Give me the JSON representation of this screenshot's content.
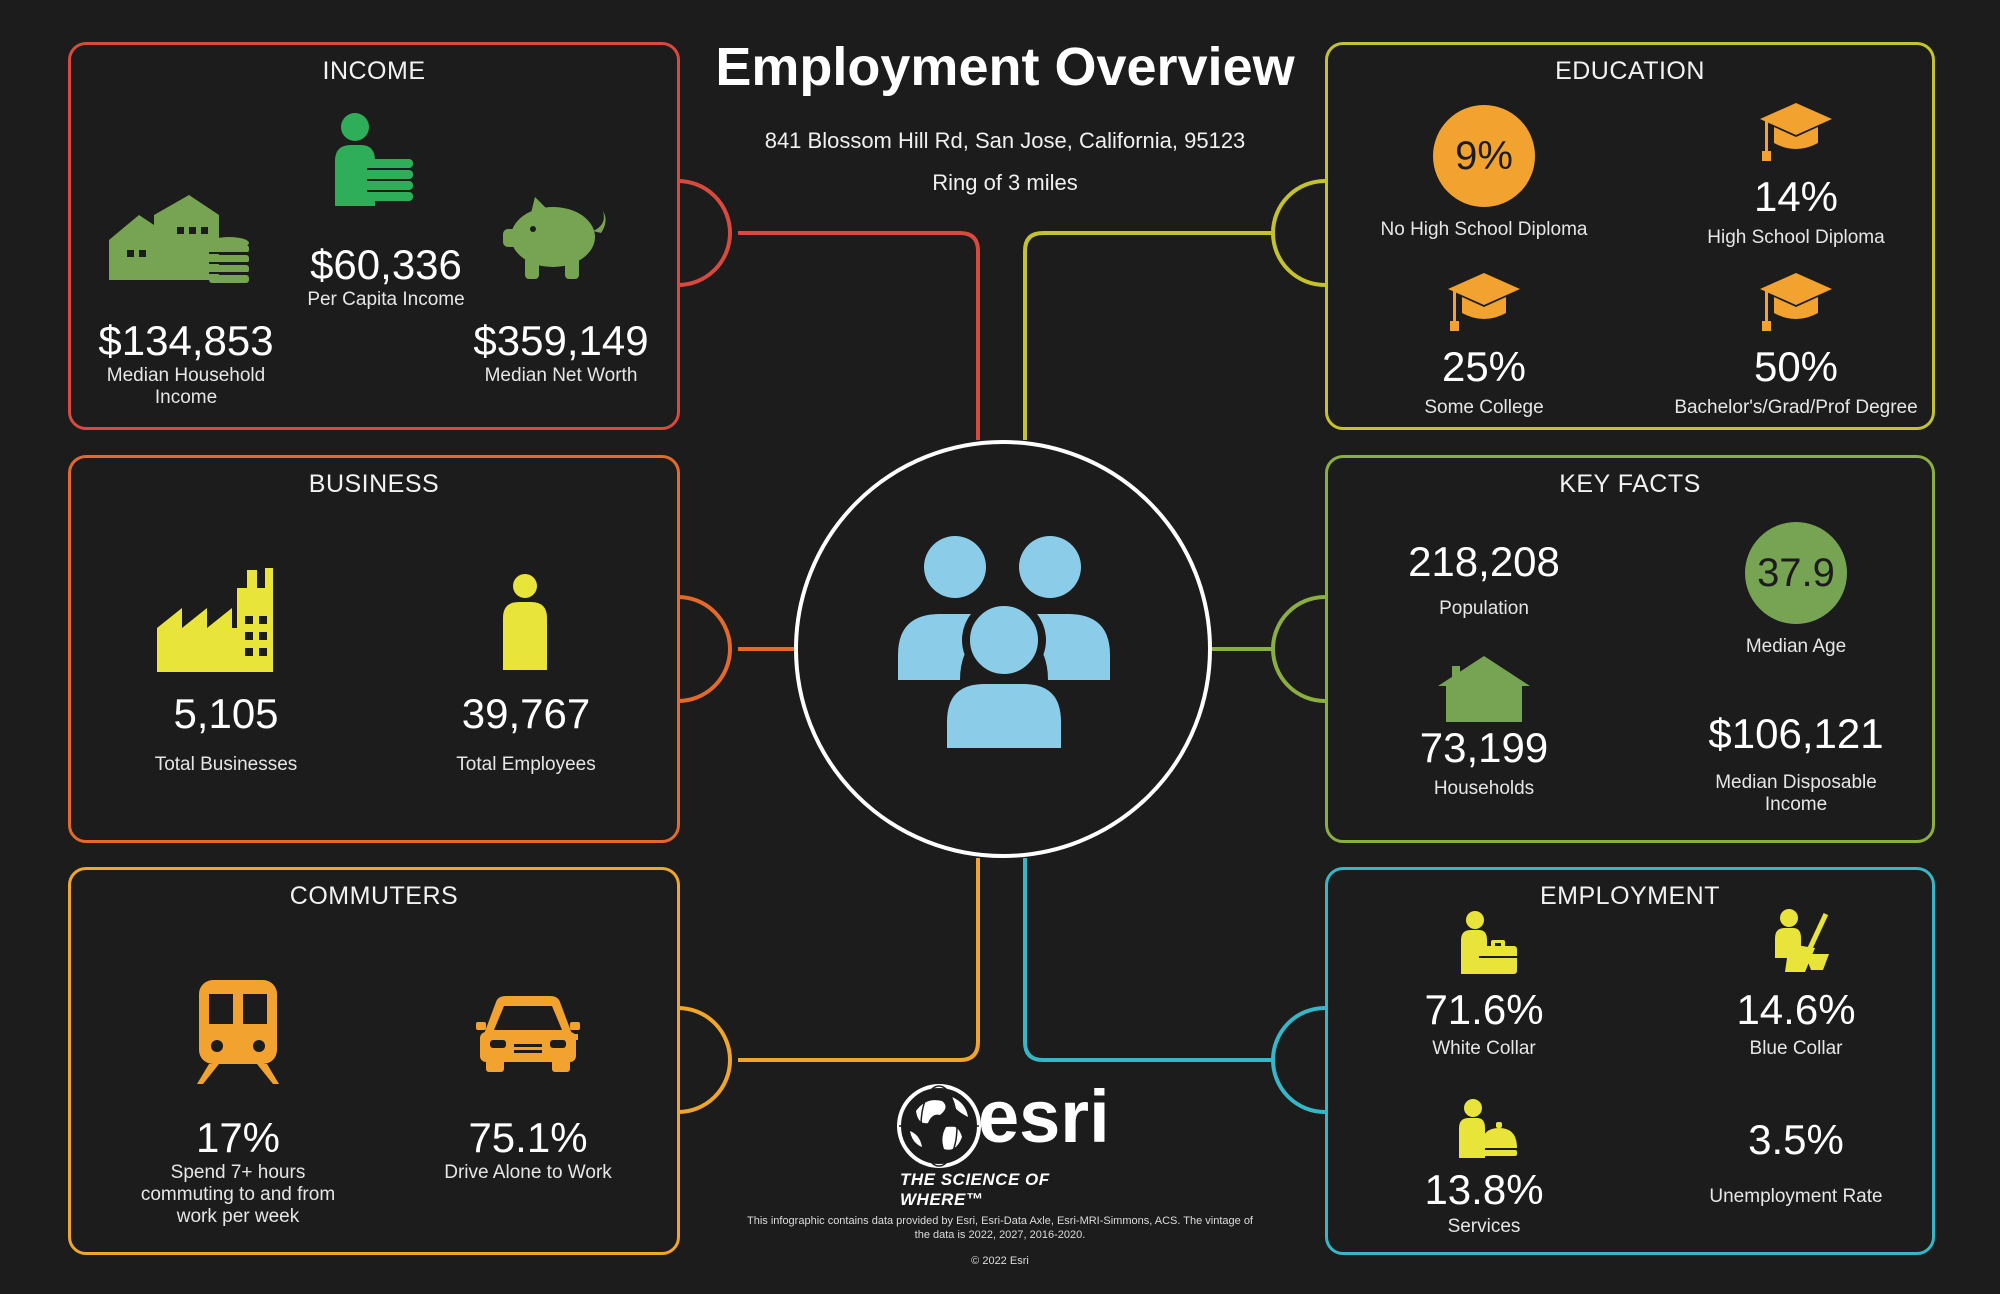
{
  "header": {
    "title": "Employment Overview",
    "address": "841 Blossom Hill Rd, San Jose, California, 95123",
    "ring": "Ring of 3 miles"
  },
  "colors": {
    "income": "#d9493e",
    "business": "#e56a2a",
    "commuters": "#f0a62a",
    "education": "#c4c32e",
    "key_facts": "#8aae3f",
    "employment": "#35b7c8",
    "center_ring": "#ffffff",
    "people_icon": "#8bcde8",
    "green_icon": "#77a452",
    "yellow_icon": "#e8e43a",
    "orange_icon": "#f2a22e"
  },
  "income": {
    "title": "INCOME",
    "median_household_income": {
      "value": "$134,853",
      "label": "Median Household Income"
    },
    "per_capita_income": {
      "value": "$60,336",
      "label": "Per Capita Income"
    },
    "median_net_worth": {
      "value": "$359,149",
      "label": "Median Net Worth"
    },
    "icons": [
      "house-coins-icon",
      "person-coins-icon",
      "piggy-bank-icon"
    ]
  },
  "business": {
    "title": "BUSINESS",
    "total_businesses": {
      "value": "5,105",
      "label": "Total Businesses"
    },
    "total_employees": {
      "value": "39,767",
      "label": "Total Employees"
    },
    "icons": [
      "factory-icon",
      "person-icon"
    ]
  },
  "commuters": {
    "title": "COMMUTERS",
    "long_commute": {
      "value": "17%",
      "label": "Spend 7+ hours commuting to and from work per week"
    },
    "drive_alone": {
      "value": "75.1%",
      "label": "Drive Alone to Work"
    },
    "icons": [
      "train-icon",
      "car-icon"
    ]
  },
  "education": {
    "title": "EDUCATION",
    "no_high_school": {
      "value": "9%",
      "label": "No High School Diploma"
    },
    "high_school": {
      "value": "14%",
      "label": "High School Diploma"
    },
    "some_college": {
      "value": "25%",
      "label": "Some College"
    },
    "bachelors": {
      "value": "50%",
      "label": "Bachelor's/Grad/Prof Degree"
    },
    "icons": [
      "graduation-cap-icon"
    ]
  },
  "key_facts": {
    "title": "KEY FACTS",
    "population": {
      "value": "218,208",
      "label": "Population"
    },
    "median_age": {
      "value": "37.9",
      "label": "Median Age"
    },
    "households": {
      "value": "73,199",
      "label": "Households"
    },
    "median_disposable_income": {
      "value": "$106,121",
      "label": "Median Disposable Income"
    },
    "icons": [
      "house-icon"
    ]
  },
  "employment": {
    "title": "EMPLOYMENT",
    "white_collar": {
      "value": "71.6%",
      "label": "White Collar"
    },
    "blue_collar": {
      "value": "14.6%",
      "label": "Blue Collar"
    },
    "services": {
      "value": "13.8%",
      "label": "Services"
    },
    "unemployment_rate": {
      "value": "3.5%",
      "label": "Unemployment Rate"
    },
    "icons": [
      "briefcase-worker-icon",
      "cleaning-worker-icon",
      "service-bell-icon"
    ]
  },
  "footer": {
    "brand": "esri",
    "tagline": "THE SCIENCE OF WHERE™",
    "note": "This infographic contains data provided by Esri, Esri-Data Axle, Esri-MRI-Simmons, ACS. The vintage of the data is 2022, 2027, 2016-2020.",
    "copyright": "© 2022 Esri"
  }
}
